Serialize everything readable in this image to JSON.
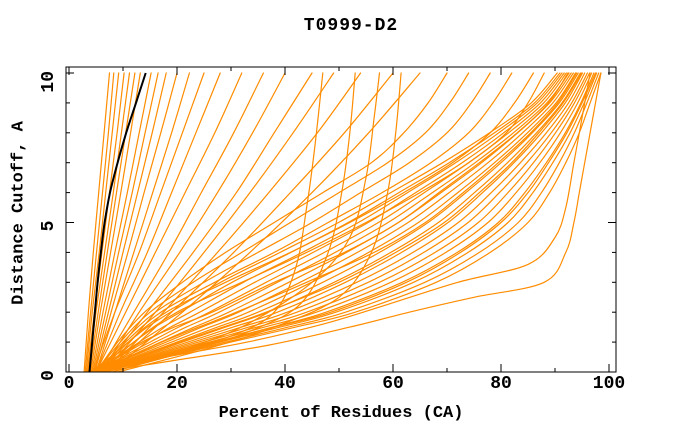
{
  "page": {
    "background": "#ffffff",
    "kind": "gnuplot-style accuracy curve plot"
  },
  "chart_data": {
    "type": "line",
    "title": "T0999-D2",
    "xlabel": "Percent of Residues (CA)",
    "ylabel": "Distance Cutoff, A",
    "xlim": [
      0,
      100
    ],
    "ylim": [
      0,
      10
    ],
    "grid": false,
    "legend": "none",
    "frame_color": "#000000",
    "model_color": "#ff8c00",
    "highlight_color": "#000000",
    "x_major_ticks": [
      0,
      20,
      40,
      60,
      80,
      100
    ],
    "x_tick_labels": [
      "0",
      "20",
      "40",
      "60",
      "80",
      "100"
    ],
    "x_minor_ticks": [
      10,
      30,
      50,
      70,
      90
    ],
    "y_major_ticks": [
      0,
      5,
      10
    ],
    "y_tick_labels": [
      "0",
      "5",
      "10"
    ],
    "y_minor_ticks": [
      1,
      2,
      3,
      4,
      6,
      7,
      8,
      9
    ],
    "y_grids": {
      "g6": [
        0,
        2,
        4,
        6,
        8,
        10
      ],
      "g11": [
        0,
        1,
        2,
        3,
        4,
        5,
        6,
        7,
        8,
        9,
        10
      ],
      "g13": [
        0,
        0.5,
        1,
        1.5,
        2,
        3,
        4,
        5,
        6,
        7,
        8,
        9,
        10
      ]
    },
    "highlight_curve": {
      "g": "g11",
      "x": [
        3.8,
        4.3,
        4.8,
        5.3,
        5.9,
        6.6,
        7.6,
        9.0,
        10.6,
        12.4,
        14.2
      ]
    },
    "model_curves": [
      {
        "g": "g6",
        "x": [
          2.8,
          3.6,
          4.5,
          5.5,
          6.5,
          7.5
        ]
      },
      {
        "g": "g6",
        "x": [
          3.0,
          4.0,
          5.1,
          6.2,
          7.3,
          8.3
        ]
      },
      {
        "g": "g6",
        "x": [
          3.2,
          4.3,
          5.6,
          6.8,
          8.0,
          9.2
        ]
      },
      {
        "g": "g6",
        "x": [
          3.4,
          4.7,
          6.1,
          7.5,
          8.9,
          10.2
        ]
      },
      {
        "g": "g6",
        "x": [
          3.6,
          5.0,
          6.6,
          8.2,
          9.7,
          11.2
        ]
      },
      {
        "g": "g6",
        "x": [
          3.8,
          5.4,
          7.1,
          8.8,
          10.5,
          12.2
        ]
      },
      {
        "g": "g6",
        "x": [
          4.0,
          5.8,
          7.7,
          9.6,
          11.4,
          13.2
        ]
      },
      {
        "g": "g6",
        "x": [
          4.2,
          6.3,
          8.5,
          10.8,
          13.0,
          15.2
        ]
      },
      {
        "g": "g6",
        "x": [
          4.4,
          6.8,
          9.2,
          11.7,
          14.1,
          16.5
        ]
      },
      {
        "g": "g6",
        "x": [
          4.6,
          7.3,
          10.0,
          12.7,
          15.4,
          18.0
        ]
      },
      {
        "g": "g6",
        "x": [
          4.8,
          7.8,
          10.9,
          13.9,
          17.0,
          20.0
        ]
      },
      {
        "g": "g6",
        "x": [
          5.0,
          8.5,
          12.0,
          15.5,
          19.0,
          22.3
        ]
      },
      {
        "g": "g6",
        "x": [
          4.5,
          8.5,
          13.0,
          17.0,
          21.0,
          25.0
        ]
      },
      {
        "g": "g6",
        "x": [
          5.0,
          9.5,
          14.5,
          19.0,
          23.5,
          28.0
        ]
      },
      {
        "g": "g6",
        "x": [
          5.0,
          10.5,
          16.0,
          21.5,
          27.0,
          32.0
        ]
      },
      {
        "g": "g6",
        "x": [
          5.5,
          12.0,
          18.5,
          24.5,
          30.5,
          36.0
        ]
      },
      {
        "g": "g6",
        "x": [
          6.0,
          13.0,
          20.5,
          27.5,
          34.0,
          40.0
        ]
      },
      {
        "g": "g6",
        "x": [
          6.0,
          14.5,
          23.0,
          31.0,
          38.0,
          45.0
        ]
      },
      {
        "g": "g6",
        "x": [
          6.5,
          16.0,
          25.0,
          33.5,
          41.5,
          49.0
        ]
      },
      {
        "g": "g6",
        "x": [
          7.0,
          17.5,
          27.5,
          37.0,
          46.0,
          54.0
        ]
      },
      {
        "g": "g6",
        "x": [
          7.0,
          19.0,
          30.5,
          41.0,
          51.0,
          60.0
        ]
      },
      {
        "g": "g6",
        "x": [
          7.5,
          21.0,
          33.5,
          45.0,
          55.5,
          65.0
        ]
      },
      {
        "y": [
          0,
          0.7,
          1.2,
          2,
          3.5,
          5.5,
          7.5,
          10
        ],
        "x": [
          7,
          20,
          30,
          38,
          42,
          44,
          45.5,
          47
        ]
      },
      {
        "y": [
          0,
          0.8,
          1.4,
          2.3,
          4,
          6,
          8,
          10
        ],
        "x": [
          8,
          24,
          34,
          43,
          48,
          50.5,
          52,
          53
        ]
      },
      {
        "y": [
          0,
          0.8,
          1.5,
          2.5,
          4,
          6,
          8,
          10
        ],
        "x": [
          9,
          26,
          38,
          50,
          56,
          59,
          60.5,
          61.5
        ]
      },
      {
        "y": [
          0,
          0.8,
          1.6,
          3,
          4.5,
          6.5,
          8.5,
          10
        ],
        "x": [
          8,
          22,
          33,
          45,
          52,
          55,
          56.5,
          57.5
        ]
      },
      {
        "g": "g11",
        "x": [
          5.0,
          9.0,
          14.0,
          21.0,
          29.0,
          38.0,
          47.0,
          56.0,
          62.0,
          66.5,
          70.0
        ]
      },
      {
        "g": "g11",
        "x": [
          5.0,
          9.5,
          15.0,
          23.0,
          32.0,
          41.0,
          50.0,
          59.0,
          66.0,
          70.5,
          74.0
        ]
      },
      {
        "g": "g11",
        "x": [
          5.5,
          10.0,
          16.0,
          25.0,
          35.0,
          45.0,
          54.0,
          63.0,
          70.0,
          74.5,
          78.0
        ]
      },
      {
        "g": "g11",
        "x": [
          5.5,
          10.5,
          17.0,
          27.0,
          38.0,
          48.0,
          58.0,
          67.0,
          74.0,
          78.5,
          82.0
        ]
      },
      {
        "g": "g11",
        "x": [
          6.0,
          11.0,
          18.0,
          29.0,
          41.0,
          52.0,
          62.0,
          71.0,
          78.0,
          82.5,
          86.0
        ]
      },
      {
        "g": "g11",
        "x": [
          6.0,
          12.0,
          20.0,
          32.0,
          44.0,
          55.0,
          65.0,
          74.0,
          81.0,
          85.0,
          88.0
        ]
      },
      {
        "g": "g13",
        "x": [
          4.1,
          7.6,
          11.0,
          14.5,
          18.8,
          28.1,
          39.1,
          49.9,
          59.6,
          69.2,
          77.9,
          85.6,
          90.4
        ]
      },
      {
        "g": "g13",
        "x": [
          4.2,
          8.1,
          12.0,
          15.9,
          20.6,
          30.2,
          41.1,
          51.7,
          61.1,
          70.4,
          78.8,
          86.2,
          90.9
        ]
      },
      {
        "g": "g13",
        "x": [
          4.3,
          8.7,
          13.0,
          17.4,
          22.4,
          32.3,
          43.2,
          53.6,
          62.7,
          71.6,
          79.6,
          86.7,
          91.3
        ]
      },
      {
        "g": "g13",
        "x": [
          4.4,
          9.2,
          14.0,
          18.8,
          24.2,
          34.4,
          45.2,
          55.4,
          64.2,
          72.8,
          80.5,
          87.3,
          91.7
        ]
      },
      {
        "g": "g13",
        "x": [
          4.5,
          9.8,
          15.0,
          20.3,
          26.0,
          36.5,
          47.3,
          57.3,
          65.8,
          74.0,
          81.4,
          87.9,
          92.1
        ]
      },
      {
        "g": "g13",
        "x": [
          4.6,
          10.3,
          16.0,
          21.7,
          27.8,
          38.6,
          49.3,
          59.1,
          67.3,
          75.2,
          82.3,
          88.5,
          92.6
        ]
      },
      {
        "g": "g13",
        "x": [
          4.7,
          10.9,
          17.0,
          23.2,
          29.6,
          40.7,
          51.4,
          61.0,
          68.9,
          76.4,
          83.1,
          89.0,
          93.0
        ]
      },
      {
        "g": "g13",
        "x": [
          4.8,
          11.4,
          18.0,
          24.6,
          31.4,
          42.8,
          53.4,
          62.8,
          70.4,
          77.6,
          84.0,
          89.6,
          93.4
        ]
      },
      {
        "g": "g13",
        "x": [
          4.9,
          12.0,
          19.0,
          26.1,
          33.2,
          44.9,
          55.5,
          64.7,
          72.0,
          78.8,
          84.9,
          90.2,
          93.8
        ]
      },
      {
        "g": "g13",
        "x": [
          5.0,
          12.5,
          20.0,
          27.5,
          35.0,
          47.0,
          57.5,
          66.5,
          73.5,
          80.0,
          85.8,
          90.8,
          94.3
        ]
      },
      {
        "g": "g13",
        "x": [
          5.1,
          13.1,
          21.0,
          29.0,
          36.8,
          49.1,
          59.6,
          68.4,
          75.1,
          81.2,
          86.6,
          91.3,
          94.7
        ]
      },
      {
        "g": "g13",
        "x": [
          5.2,
          13.6,
          22.0,
          30.4,
          38.6,
          51.2,
          61.6,
          70.2,
          76.6,
          82.4,
          87.5,
          91.9,
          95.1
        ]
      },
      {
        "g": "g13",
        "x": [
          5.3,
          14.2,
          23.0,
          31.9,
          40.4,
          53.3,
          63.7,
          72.1,
          78.2,
          83.6,
          88.4,
          92.5,
          95.5
        ]
      },
      {
        "g": "g13",
        "x": [
          5.4,
          14.7,
          24.0,
          33.3,
          42.2,
          55.4,
          65.7,
          73.9,
          79.7,
          84.8,
          89.3,
          93.1,
          96.0
        ]
      },
      {
        "g": "g13",
        "x": [
          5.5,
          15.3,
          25.0,
          34.8,
          44.0,
          57.5,
          67.8,
          75.8,
          81.3,
          86.0,
          90.1,
          93.6,
          96.4
        ]
      },
      {
        "g": "g13",
        "x": [
          5.6,
          15.8,
          26.0,
          36.2,
          45.8,
          59.6,
          69.8,
          77.6,
          82.8,
          87.2,
          91.0,
          94.2,
          96.8
        ]
      },
      {
        "g": "g13",
        "x": [
          5.7,
          16.4,
          27.0,
          37.7,
          47.6,
          61.7,
          71.9,
          79.5,
          84.4,
          88.4,
          91.9,
          94.8,
          97.2
        ]
      },
      {
        "g": "g13",
        "x": [
          5.8,
          16.9,
          28.0,
          39.1,
          49.4,
          63.8,
          73.9,
          81.3,
          85.9,
          89.6,
          92.8,
          95.4,
          97.7
        ]
      },
      {
        "g": "g13",
        "x": [
          5.9,
          17.5,
          29.0,
          40.6,
          51.2,
          65.9,
          76.0,
          83.2,
          87.5,
          90.8,
          93.6,
          95.9,
          98.1
        ]
      },
      {
        "g": "g13",
        "x": [
          6.0,
          18.0,
          30.0,
          42.0,
          53.0,
          68.0,
          78.0,
          85.0,
          89.0,
          92.0,
          94.5,
          96.5,
          98.5
        ]
      },
      {
        "g": "g13",
        "x": [
          4.6,
          9.0,
          13.5,
          19.5,
          26.5,
          38.0,
          51.0,
          61.0,
          68.5,
          76.0,
          83.0,
          88.8,
          92.4
        ]
      },
      {
        "g": "g13",
        "x": [
          5.2,
          12.8,
          20.5,
          28.5,
          36.5,
          50.0,
          60.5,
          69.5,
          76.0,
          82.0,
          87.0,
          91.5,
          94.9
        ]
      },
      {
        "g": "g13",
        "x": [
          5.6,
          16.2,
          27.5,
          38.0,
          48.5,
          62.5,
          72.5,
          80.0,
          85.0,
          88.8,
          92.2,
          95.0,
          97.5
        ]
      },
      {
        "g": "g13",
        "x": [
          4.9,
          11.2,
          17.2,
          24.0,
          31.0,
          44.0,
          56.5,
          66.0,
          73.0,
          79.5,
          85.5,
          90.5,
          94.0
        ]
      },
      {
        "y": [
          0,
          0.4,
          0.9,
          1.5,
          2,
          2.5,
          3,
          4,
          5,
          6,
          7,
          8,
          9,
          10
        ],
        "x": [
          6,
          20,
          37,
          52,
          63,
          75,
          88,
          92,
          93.5,
          94.5,
          95.5,
          96.5,
          97.5,
          98.5
        ]
      },
      {
        "y": [
          0,
          0.5,
          1,
          1.6,
          2.2,
          3,
          3.6,
          4.5,
          5.5,
          7,
          8.5,
          10
        ],
        "x": [
          6,
          18,
          33,
          47,
          58,
          72,
          85,
          90,
          92,
          93.5,
          95,
          96.5
        ]
      }
    ]
  }
}
